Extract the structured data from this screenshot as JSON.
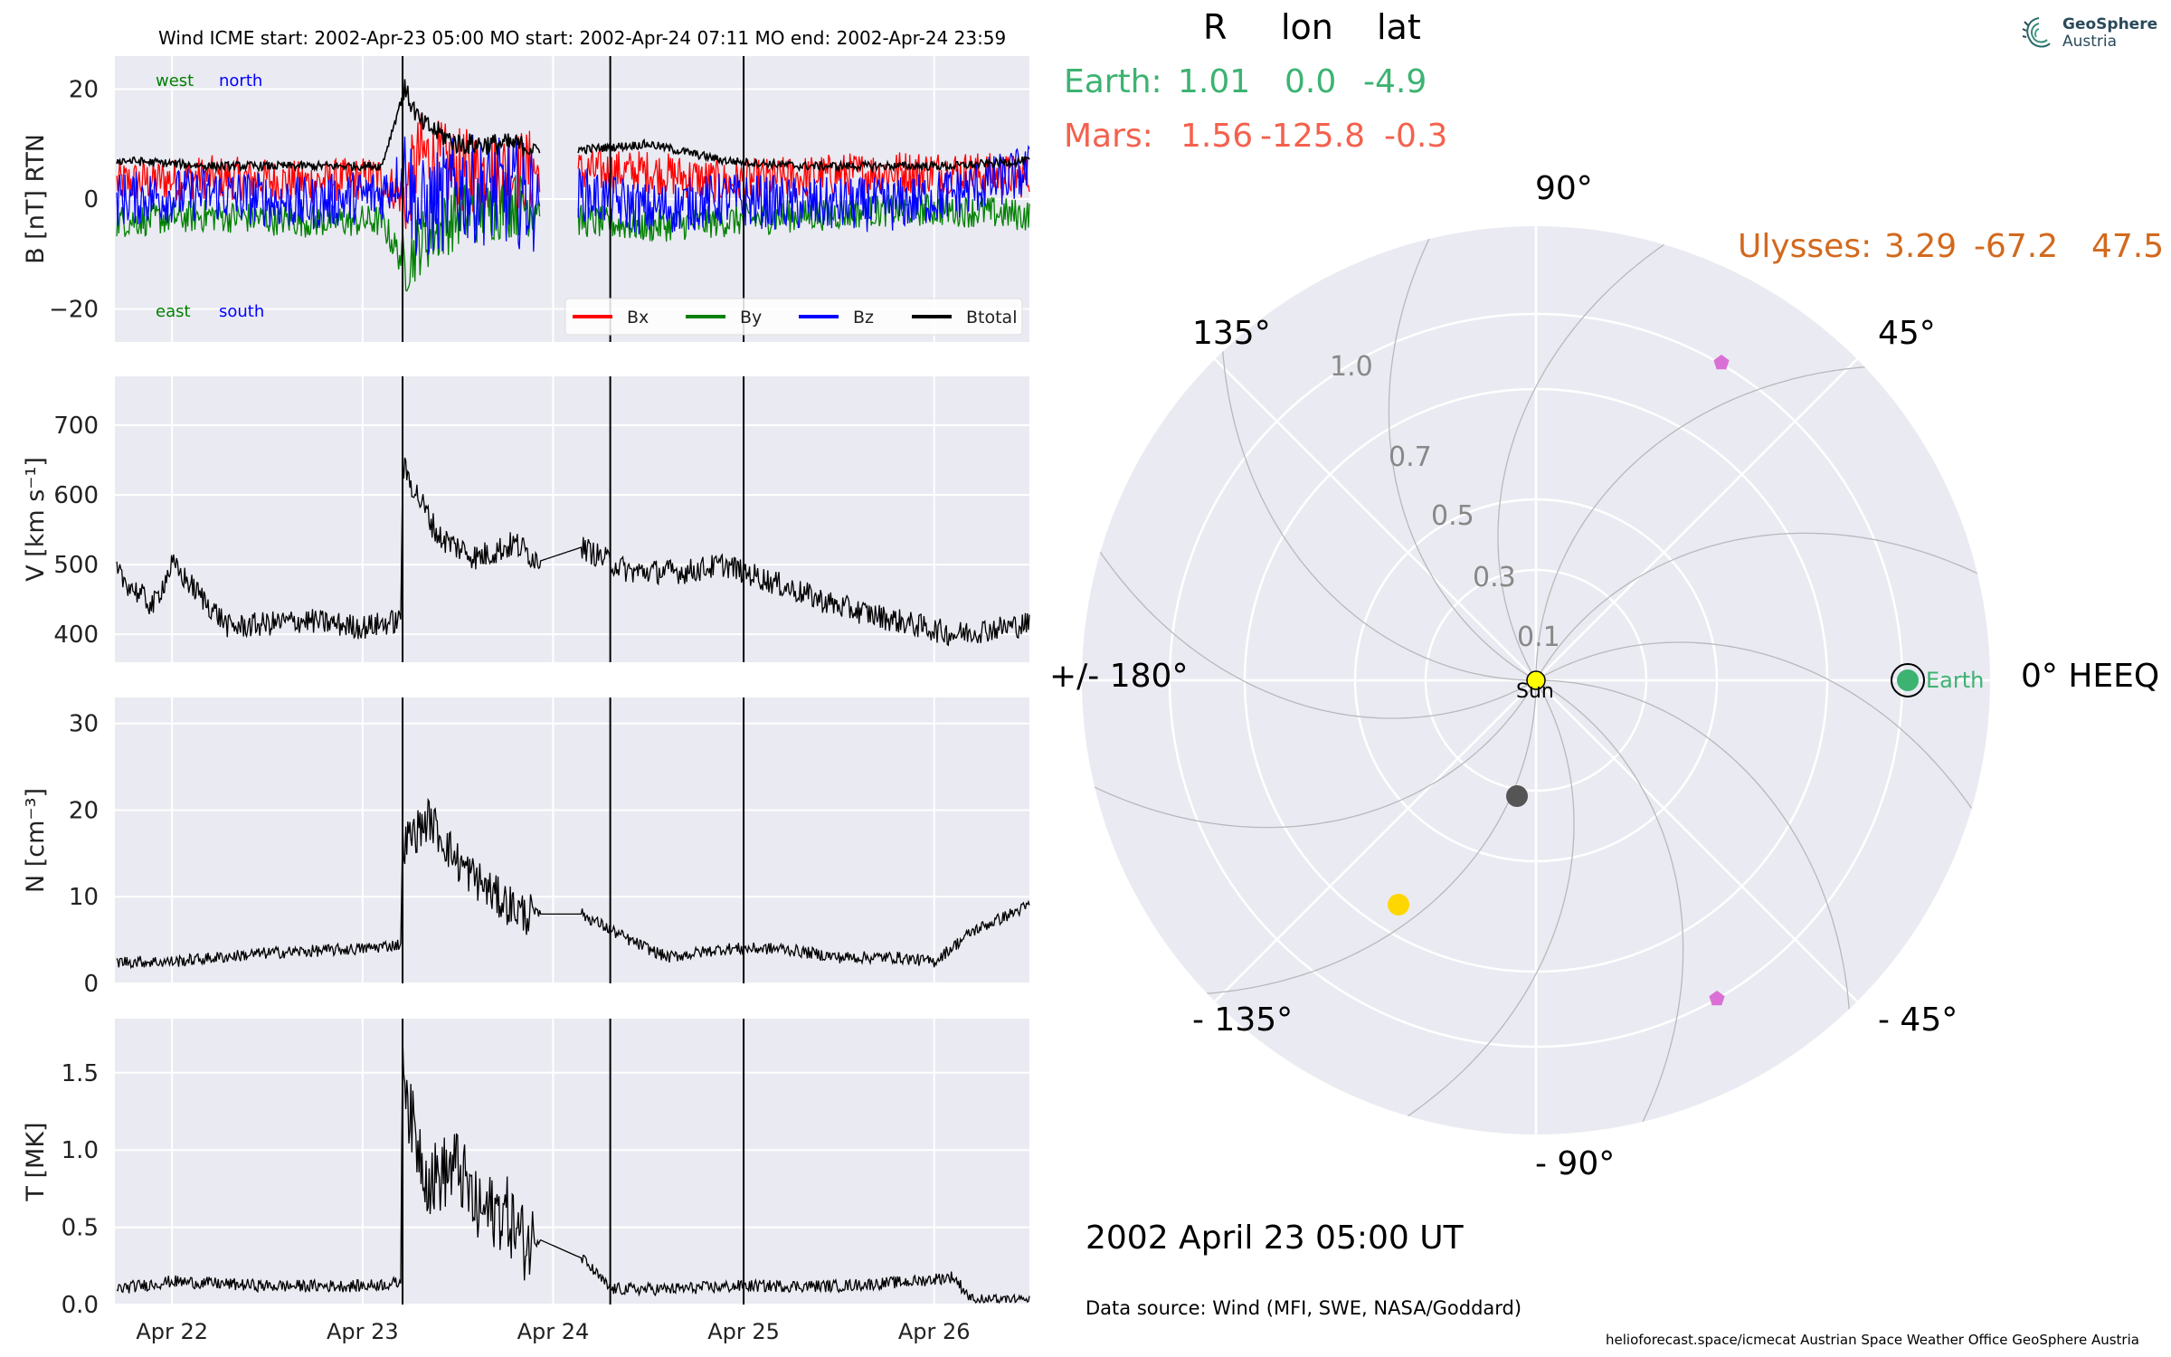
{
  "top_title": "Wind    ICME start: 2002-Apr-23 05:00   MO start: 2002-Apr-24 07:11   MO end: 2002-Apr-24 23:59",
  "logo": {
    "line1": "GeoSphere",
    "line2": "Austria",
    "icon": "spiral-logo-icon"
  },
  "position_table": {
    "headers": [
      "R",
      "lon",
      "lat"
    ],
    "earth": {
      "label": "Earth:",
      "R": "1.01",
      "lon": "0.0",
      "lat": "-4.9",
      "color": "#3CB371"
    },
    "mars": {
      "label": "Mars:",
      "R": "1.56",
      "lon": "-125.8",
      "lat": "-0.3",
      "color": "#F4614D"
    },
    "ulysses": {
      "label": "Ulysses:",
      "R": "3.29",
      "lon": "-67.2",
      "lat": "47.5",
      "color": "#D2691E"
    }
  },
  "polar": {
    "angle_labels": {
      "a90": "90°",
      "a45": "45°",
      "a135": "135°",
      "a0": "0° HEEQ",
      "a180": "+/- 180°",
      "am45": "- 45°",
      "am135": "- 135°",
      "am90": "- 90°"
    },
    "r_labels": {
      "r1": "1.0",
      "r07": "0.7",
      "r05": "0.5",
      "r03": "0.3",
      "r01": "0.1"
    },
    "sun_label": "Sun",
    "earth_label": "Earth"
  },
  "footer": {
    "date": "2002 April 23  05:00 UT",
    "source": "Data source: Wind (MFI, SWE, NASA/Goddard)",
    "credits": "helioforecast.space/icmecat   Austrian Space Weather Office   GeoSphere Austria"
  },
  "colors": {
    "bx": "#ff0000",
    "by": "#008000",
    "bz": "#0000ff",
    "btotal": "#000000",
    "panel_bg": "#EAEAF2",
    "mars": "#F4614D",
    "earth": "#3CB371",
    "ulysses": "#D2691E"
  },
  "chart_data": [
    {
      "type": "line",
      "ylabel": "B [nT] RTN",
      "x_tick_labels": [
        "Apr 22",
        "Apr 23",
        "Apr 24",
        "Apr 25",
        "Apr 26"
      ],
      "xlim_days": [
        21.7,
        26.5
      ],
      "ylim": [
        -26,
        26
      ],
      "yticks": [
        -20,
        0,
        20
      ],
      "event_lines_days": [
        23.21,
        24.3,
        25.0
      ],
      "corner_labels": {
        "west": "west",
        "north": "north",
        "east": "east",
        "south": "south"
      },
      "legend": [
        "Bx",
        "By",
        "Bz",
        "Btotal"
      ],
      "series": [
        {
          "name": "Bx",
          "x": [
            21.75,
            22.2,
            22.7,
            23.1,
            23.22,
            23.3,
            23.5,
            23.8,
            23.93,
            24.15,
            24.5,
            24.9,
            25.3,
            25.8,
            26.1,
            26.5
          ],
          "values": [
            3,
            4,
            3,
            4,
            0,
            8,
            5,
            5,
            5,
            5,
            5,
            3,
            4,
            5,
            5,
            4
          ]
        },
        {
          "name": "By",
          "x": [
            21.75,
            22.2,
            22.7,
            23.1,
            23.22,
            23.3,
            23.5,
            23.8,
            23.93,
            24.15,
            24.5,
            24.9,
            25.3,
            25.8,
            26.1,
            26.5
          ],
          "values": [
            -4,
            -3,
            -4,
            -4,
            -12,
            -8,
            -3,
            -1,
            -1,
            -4,
            -5,
            -4,
            -3,
            -2,
            -2,
            -3
          ]
        },
        {
          "name": "Bz",
          "x": [
            21.75,
            22.2,
            22.7,
            23.1,
            23.22,
            23.3,
            23.5,
            23.8,
            23.93,
            24.15,
            24.5,
            24.9,
            25.3,
            25.8,
            26.1,
            26.5
          ],
          "values": [
            0,
            1,
            -1,
            1,
            5,
            -3,
            2,
            1,
            0,
            1,
            -2,
            0,
            -1,
            -1,
            1,
            5
          ]
        },
        {
          "name": "Btotal",
          "x": [
            21.75,
            22.2,
            22.7,
            23.1,
            23.22,
            23.3,
            23.5,
            23.8,
            23.93,
            24.15,
            24.5,
            24.9,
            25.3,
            25.8,
            26.1,
            26.5
          ],
          "values": [
            7,
            6,
            6,
            6,
            20,
            14,
            10,
            10,
            9,
            9,
            10,
            7,
            6,
            6,
            6,
            7
          ]
        }
      ]
    },
    {
      "type": "line",
      "ylabel": "V [km s⁻¹]",
      "x_tick_labels": [
        "Apr 22",
        "Apr 23",
        "Apr 24",
        "Apr 25",
        "Apr 26"
      ],
      "xlim_days": [
        21.7,
        26.5
      ],
      "ylim": [
        360,
        770
      ],
      "yticks": [
        400,
        500,
        600,
        700
      ],
      "series": [
        {
          "name": "V",
          "x": [
            21.7,
            21.9,
            22.0,
            22.3,
            22.7,
            23.0,
            23.2,
            23.21,
            23.25,
            23.4,
            23.6,
            23.8,
            23.93,
            24.15,
            24.4,
            24.7,
            24.9,
            25.2,
            25.5,
            25.8,
            26.1,
            26.5
          ],
          "values": [
            490,
            440,
            500,
            410,
            420,
            410,
            420,
            640,
            620,
            540,
            510,
            530,
            505,
            525,
            490,
            490,
            500,
            470,
            440,
            420,
            400,
            415
          ]
        }
      ]
    },
    {
      "type": "line",
      "ylabel": "N [cm⁻³]",
      "x_tick_labels": [
        "Apr 22",
        "Apr 23",
        "Apr 24",
        "Apr 25",
        "Apr 26"
      ],
      "xlim_days": [
        21.7,
        26.5
      ],
      "ylim": [
        0,
        33
      ],
      "yticks": [
        0,
        10,
        20,
        30
      ],
      "series": [
        {
          "name": "N",
          "x": [
            21.7,
            22.0,
            22.5,
            23.0,
            23.2,
            23.21,
            23.35,
            23.5,
            23.7,
            23.85,
            23.93,
            24.15,
            24.4,
            24.6,
            24.9,
            25.2,
            25.5,
            25.8,
            26.0,
            26.2,
            26.5
          ],
          "values": [
            2.5,
            2.5,
            3.5,
            4,
            4.5,
            16,
            19,
            14,
            10,
            8,
            8,
            8,
            5,
            3,
            4,
            4,
            3,
            3,
            2.5,
            6,
            9
          ]
        }
      ]
    },
    {
      "type": "line",
      "ylabel": "T [MK]",
      "x_tick_labels": [
        "Apr 22",
        "Apr 23",
        "Apr 24",
        "Apr 25",
        "Apr 26"
      ],
      "xlim_days": [
        21.7,
        26.5
      ],
      "ylim": [
        0,
        1.85
      ],
      "yticks": [
        0.0,
        0.5,
        1.0,
        1.5
      ],
      "series": [
        {
          "name": "T",
          "x": [
            21.7,
            22.0,
            22.5,
            23.0,
            23.2,
            23.21,
            23.25,
            23.35,
            23.5,
            23.6,
            23.75,
            23.85,
            23.93,
            24.15,
            24.3,
            24.6,
            25.0,
            25.5,
            25.9,
            26.1,
            26.2,
            26.5
          ],
          "values": [
            0.1,
            0.15,
            0.12,
            0.12,
            0.14,
            1.7,
            1.2,
            0.8,
            0.9,
            0.6,
            0.6,
            0.4,
            0.42,
            0.3,
            0.1,
            0.1,
            0.12,
            0.12,
            0.15,
            0.18,
            0.03,
            0.02
          ]
        }
      ]
    }
  ]
}
